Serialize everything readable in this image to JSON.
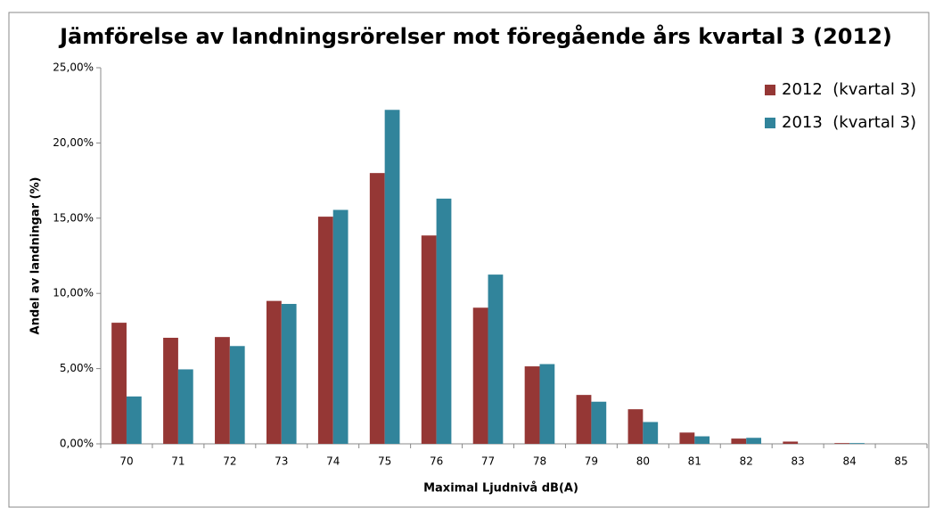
{
  "chart_data": {
    "type": "bar",
    "title": "Jämförelse av landningsrörelser mot föregående års kvartal 3 (2012)",
    "x_label": "Maximal Ljudnivå dB(A)",
    "y_label": "Andel av landningar (%)",
    "categories": [
      "70",
      "71",
      "72",
      "73",
      "74",
      "75",
      "76",
      "77",
      "78",
      "79",
      "80",
      "81",
      "82",
      "83",
      "84",
      "85"
    ],
    "series": [
      {
        "name": "2012  (kvartal 3)",
        "color": "#953735",
        "values": [
          8.05,
          7.05,
          7.1,
          9.5,
          15.1,
          18.0,
          13.85,
          9.05,
          5.15,
          3.25,
          2.3,
          0.75,
          0.35,
          0.15,
          0.05,
          0
        ]
      },
      {
        "name": "2013  (kvartal 3)",
        "color": "#31849b",
        "values": [
          3.15,
          4.95,
          6.5,
          9.3,
          15.55,
          22.2,
          16.3,
          11.25,
          5.3,
          2.8,
          1.45,
          0.5,
          0.4,
          0,
          0.05,
          0
        ]
      }
    ],
    "ylim": [
      0,
      25
    ],
    "yticks": [
      {
        "value": 0,
        "label": "0,00%"
      },
      {
        "value": 5,
        "label": "5,00%"
      },
      {
        "value": 10,
        "label": "10,00%"
      },
      {
        "value": 15,
        "label": "15,00%"
      },
      {
        "value": 20,
        "label": "20,00%"
      },
      {
        "value": 25,
        "label": "25,00%"
      }
    ],
    "grid": false,
    "legend": "top-right"
  }
}
